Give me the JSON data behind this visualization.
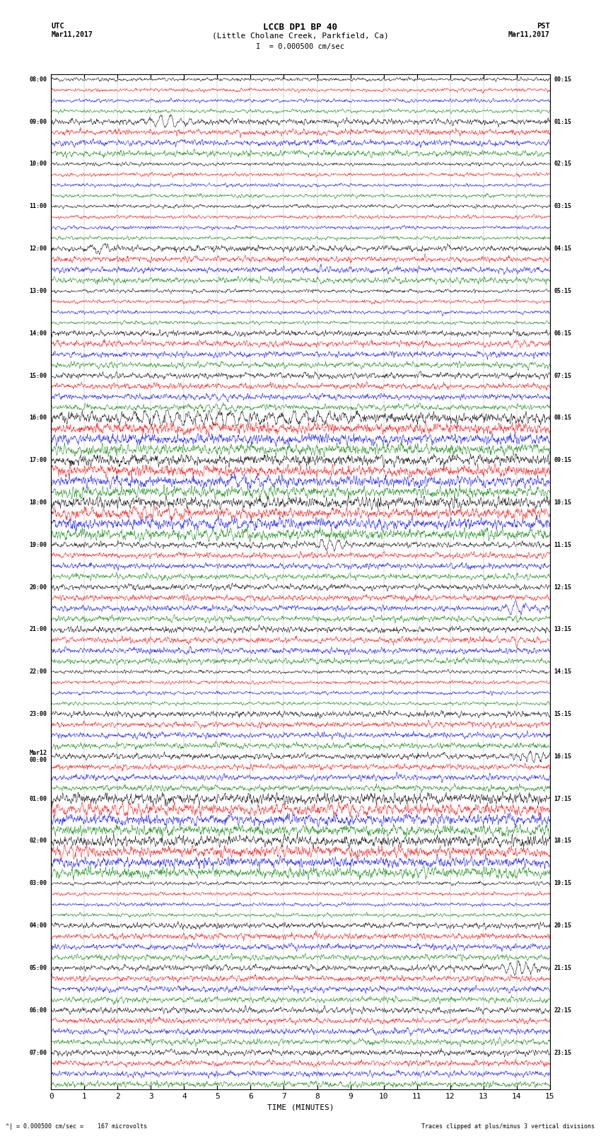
{
  "title_line1": "LCCB DP1 BP 40",
  "title_line2": "(Little Cholane Creek, Parkfield, Ca)",
  "scale_label": "I  = 0.000500 cm/sec",
  "left_header": "UTC",
  "right_header": "PST",
  "left_date": "Mar11,2017",
  "right_date": "Mar11,2017",
  "xlabel": "TIME (MINUTES)",
  "footer_left": "^| = 0.000500 cm/sec =    167 microvolts",
  "footer_right": "Traces clipped at plus/minus 3 vertical divisions",
  "utc_times": [
    "08:00",
    "09:00",
    "10:00",
    "11:00",
    "12:00",
    "13:00",
    "14:00",
    "15:00",
    "16:00",
    "17:00",
    "18:00",
    "19:00",
    "20:00",
    "21:00",
    "22:00",
    "23:00",
    "Mar12\n00:00",
    "01:00",
    "02:00",
    "03:00",
    "04:00",
    "05:00",
    "06:00",
    "07:00"
  ],
  "pst_times": [
    "00:15",
    "01:15",
    "02:15",
    "03:15",
    "04:15",
    "05:15",
    "06:15",
    "07:15",
    "08:15",
    "09:15",
    "10:15",
    "11:15",
    "12:15",
    "13:15",
    "14:15",
    "15:15",
    "16:15",
    "17:15",
    "18:15",
    "19:15",
    "20:15",
    "21:15",
    "22:15",
    "23:15"
  ],
  "trace_colors": [
    "black",
    "red",
    "blue",
    "green"
  ],
  "n_hours": 24,
  "traces_per_hour": 4,
  "x_min": 0,
  "x_max": 15,
  "x_ticks": [
    0,
    1,
    2,
    3,
    4,
    5,
    6,
    7,
    8,
    9,
    10,
    11,
    12,
    13,
    14,
    15
  ],
  "bg_color": "white",
  "fig_width": 8.5,
  "fig_height": 16.13,
  "dpi": 100
}
